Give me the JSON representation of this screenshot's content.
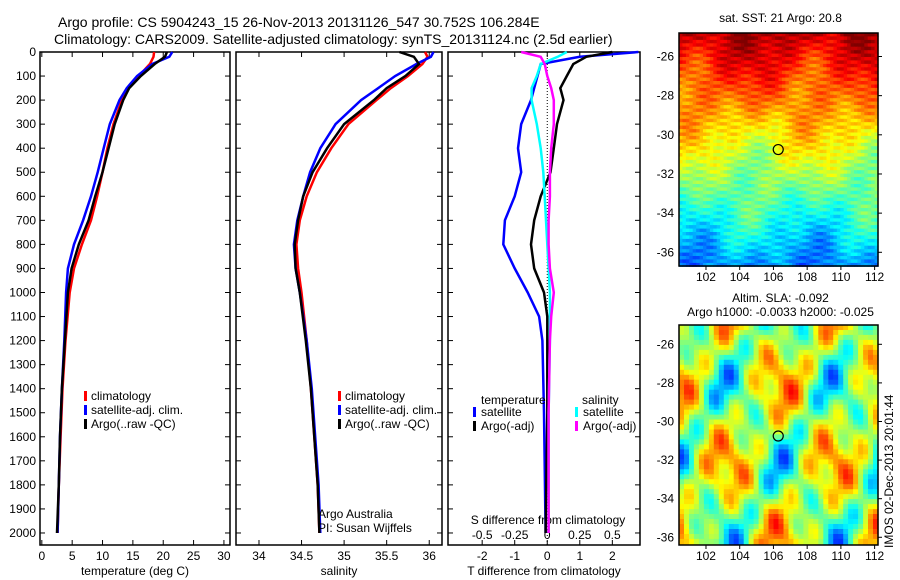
{
  "title": {
    "line1": "Argo profile: CS 5904243_15 26-Nov-2013 20131126_547 30.752S 106.284E",
    "line2": "Climatology: CARS2009. Satellite-adjusted climatology: synTS_20131124.nc (2.5d earlier)"
  },
  "stamp": "IMOS 02-Dec-2013 20:01:44",
  "colors": {
    "climatology": "#ff0000",
    "satellite": "#0000ff",
    "argo": "#000000",
    "sal_satellite": "#00ffff",
    "sal_argo": "#ff00ff"
  },
  "chart_data": [
    {
      "type": "line",
      "name": "temperature",
      "xlabel": "temperature (deg C)",
      "ylabel": "depth",
      "xlim": [
        -0.3,
        31
      ],
      "ylim": [
        2050,
        0
      ],
      "xticks": [
        "0",
        "5",
        "10",
        "15",
        "20",
        "25",
        "30"
      ],
      "xtick_values": [
        0,
        5,
        10,
        15,
        20,
        25,
        30
      ],
      "yticks": [
        "0",
        "100",
        "200",
        "300",
        "400",
        "500",
        "600",
        "700",
        "800",
        "900",
        "1000",
        "1100",
        "1200",
        "1300",
        "1400",
        "1500",
        "1600",
        "1700",
        "1800",
        "1900",
        "2000"
      ],
      "depth": [
        0,
        20,
        50,
        100,
        150,
        200,
        300,
        400,
        500,
        600,
        700,
        800,
        900,
        1000,
        1200,
        1400,
        1600,
        1800,
        2000
      ],
      "series": [
        {
          "name": "climatology",
          "color": "#ff0000",
          "values": [
            18.5,
            18.4,
            17.8,
            16,
            14.3,
            13.2,
            11.8,
            10.8,
            10,
            9.1,
            8.1,
            6.6,
            5.3,
            4.6,
            3.9,
            3.4,
            3.1,
            2.8,
            2.6
          ]
        },
        {
          "name": "satellite-adj. clim.",
          "color": "#0000ff",
          "values": [
            21.5,
            21,
            18.2,
            15.7,
            14,
            12.8,
            11.2,
            10.2,
            9.2,
            8.1,
            6.8,
            5.3,
            4.3,
            4,
            3.7,
            3.3,
            3,
            2.8,
            2.6
          ]
        },
        {
          "name": "Argo(..raw -QC)",
          "color": "#000000",
          "values": [
            20.6,
            20.3,
            18.6,
            16.3,
            14.4,
            13.4,
            12,
            11,
            10,
            8.8,
            7.7,
            6.1,
            4.9,
            4.3,
            3.8,
            3.3,
            3.0,
            2.8,
            2.5
          ]
        }
      ],
      "legend": [
        "climatology",
        "satellite-adj. clim.",
        "Argo(..raw -QC)"
      ]
    },
    {
      "type": "line",
      "name": "salinity",
      "xlabel": "salinity",
      "xlim": [
        33.73,
        36.15
      ],
      "xticks": [
        "34",
        "34.5",
        "35",
        "35.5",
        "36"
      ],
      "xtick_values": [
        34,
        34.5,
        35,
        35.5,
        36
      ],
      "depth": [
        0,
        20,
        50,
        100,
        150,
        200,
        300,
        400,
        500,
        600,
        700,
        800,
        900,
        1000,
        1200,
        1400,
        1600,
        1800,
        2000
      ],
      "series": [
        {
          "name": "climatology",
          "color": "#ff0000",
          "values": [
            35.95,
            35.98,
            35.92,
            35.75,
            35.55,
            35.38,
            35.05,
            34.85,
            34.68,
            34.56,
            34.48,
            34.44,
            34.46,
            34.5,
            34.56,
            34.61,
            34.65,
            34.69,
            34.71
          ]
        },
        {
          "name": "satellite-adj. clim.",
          "color": "#0000ff",
          "values": [
            36.05,
            36.02,
            35.85,
            35.6,
            35.4,
            35.2,
            34.9,
            34.72,
            34.6,
            34.52,
            34.45,
            34.41,
            34.43,
            34.48,
            34.56,
            34.62,
            34.66,
            34.7,
            34.72
          ]
        },
        {
          "name": "Argo(..raw -QC)",
          "color": "#000000",
          "values": [
            35.65,
            35.82,
            35.88,
            35.72,
            35.5,
            35.35,
            35.0,
            34.8,
            34.63,
            34.52,
            34.46,
            34.42,
            34.43,
            34.48,
            34.55,
            34.61,
            34.65,
            34.69,
            34.71
          ]
        }
      ],
      "legend": [
        "climatology",
        "satellite-adj. clim.",
        "Argo(..raw -QC)"
      ],
      "annotation": [
        "Argo Australia",
        "PI: Susan Wijffels"
      ]
    },
    {
      "type": "line",
      "name": "difference",
      "xlabel": "T difference from climatology",
      "x2label": "S difference from climatology",
      "xlim": [
        -3.05,
        2.85
      ],
      "xticks": [
        "-2",
        "-1",
        "0",
        "1",
        "2"
      ],
      "xtick_values": [
        -2,
        -1,
        0,
        1,
        2
      ],
      "x2ticks": [
        "-0.5",
        "-0.25",
        "0",
        "0.25",
        "0.5"
      ],
      "x2tick_values": [
        -0.5,
        -0.25,
        0,
        0.25,
        0.5
      ],
      "depth": [
        0,
        20,
        50,
        100,
        150,
        200,
        300,
        400,
        500,
        600,
        700,
        800,
        900,
        1000,
        1100,
        1200,
        1500,
        2000
      ],
      "series": [
        {
          "name": "temperature satellite",
          "color": "#0000ff",
          "axis": "T",
          "values": [
            2.8,
            1.0,
            -0.2,
            -0.3,
            -0.4,
            -0.5,
            -0.8,
            -0.9,
            -0.8,
            -1.0,
            -1.3,
            -1.35,
            -1.0,
            -0.6,
            -0.25,
            -0.15,
            -0.1,
            -0.05
          ]
        },
        {
          "name": "temperature Argo(-adj)",
          "color": "#000000",
          "axis": "T",
          "values": [
            2.0,
            1.2,
            0.8,
            0.6,
            0.4,
            0.5,
            0.3,
            0.2,
            0.1,
            -0.2,
            -0.4,
            -0.5,
            -0.4,
            -0.1,
            0,
            0,
            0,
            -0.05
          ]
        },
        {
          "name": "salinity satellite",
          "color": "#00ffff",
          "axis": "S",
          "values": [
            0.15,
            0.08,
            -0.05,
            -0.08,
            -0.12,
            -0.12,
            -0.08,
            -0.05,
            -0.03,
            -0.02,
            -0.01,
            0,
            0.01,
            0.02,
            0.02,
            0.02,
            0.01,
            0.01
          ]
        },
        {
          "name": "salinity Argo(-adj)",
          "color": "#ff00ff",
          "axis": "S",
          "values": [
            -0.2,
            -0.05,
            -0.02,
            0,
            0.03,
            0.05,
            0.05,
            0.03,
            0.02,
            0.02,
            0.01,
            0.01,
            0.02,
            0.05,
            0.03,
            0.02,
            0.01,
            0.01
          ]
        }
      ],
      "legend": {
        "temperature": "temperature",
        "salinity": "salinity",
        "satellite": "satellite",
        "argo": "Argo(-adj)"
      }
    },
    {
      "type": "heatmap",
      "name": "sat-sst-map",
      "title": "sat. SST: 21 Argo: 20.8",
      "xlim": [
        100.4,
        112.2
      ],
      "ylim": [
        -36.7,
        -24.8
      ],
      "xticks": [
        "102",
        "104",
        "106",
        "108",
        "110",
        "112"
      ],
      "xtick_values": [
        102,
        104,
        106,
        108,
        110,
        112
      ],
      "yticks": [
        "-26",
        "-28",
        "-30",
        "-32",
        "-34",
        "-36"
      ],
      "ytick_values": [
        -26,
        -28,
        -30,
        -32,
        -34,
        -36
      ],
      "marker": [
        106.284,
        -30.752
      ]
    },
    {
      "type": "heatmap",
      "name": "sla-map",
      "title": "Altim. SLA: -0.092",
      "subtitle": "Argo h1000: -0.0033 h2000: -0.025",
      "xlim": [
        100.4,
        112.2
      ],
      "ylim": [
        -36.4,
        -25
      ],
      "xticks": [
        "102",
        "104",
        "106",
        "108",
        "110",
        "112"
      ],
      "xtick_values": [
        102,
        104,
        106,
        108,
        110,
        112
      ],
      "yticks": [
        "-26",
        "-28",
        "-30",
        "-32",
        "-34",
        "-36"
      ],
      "ytick_values": [
        -26,
        -28,
        -30,
        -32,
        -34,
        -36
      ],
      "marker": [
        106.284,
        -30.752
      ]
    }
  ]
}
